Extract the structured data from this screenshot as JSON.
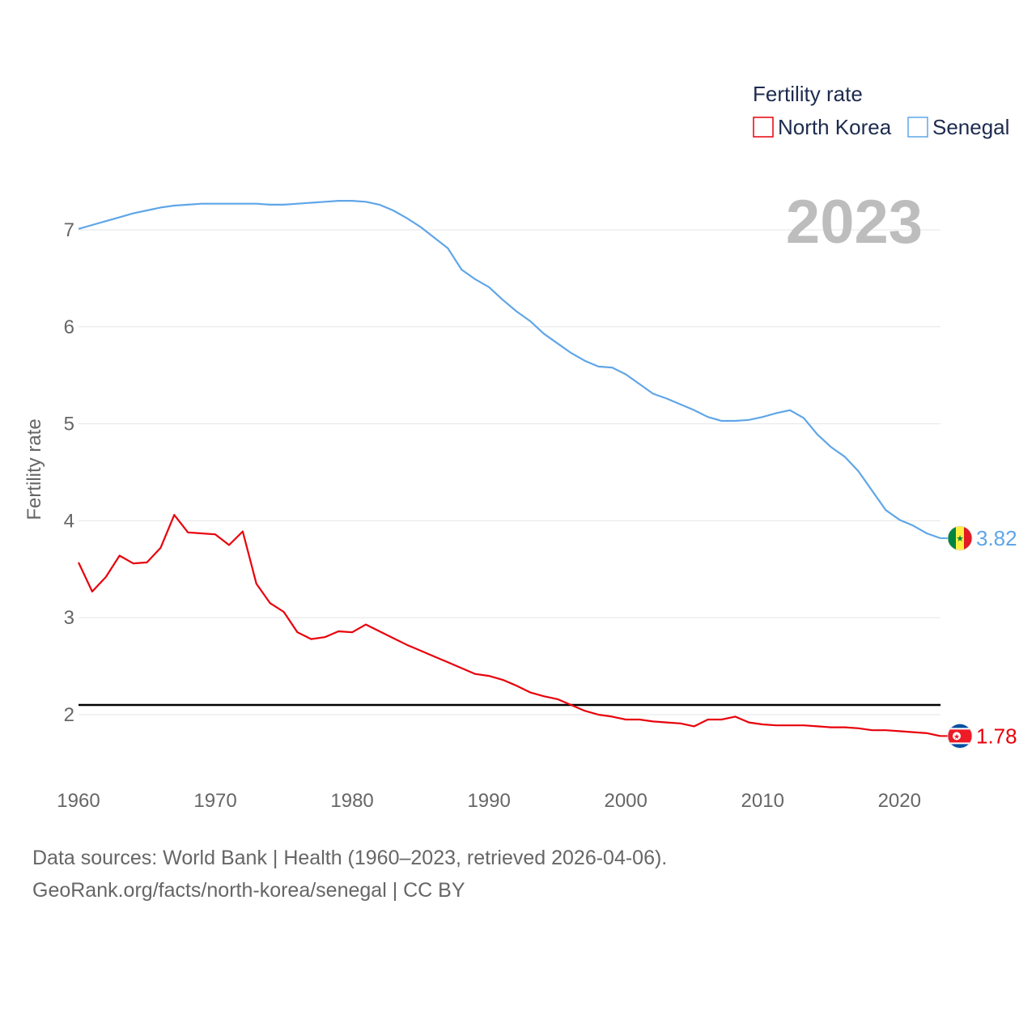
{
  "chart_data": {
    "type": "line",
    "title": "Fertility rate",
    "ylabel": "Fertility rate",
    "xlabel": "",
    "current_year": "2023",
    "xlim": [
      1960,
      2023
    ],
    "ylim": [
      1.5,
      7.6
    ],
    "x_ticks": [
      1960,
      1970,
      1980,
      1990,
      2000,
      2010,
      2020
    ],
    "y_ticks": [
      2,
      3,
      4,
      5,
      6,
      7
    ],
    "reference_line": 2.1,
    "legend_title": "Fertility rate",
    "x": [
      1960,
      1961,
      1962,
      1963,
      1964,
      1965,
      1966,
      1967,
      1968,
      1969,
      1970,
      1971,
      1972,
      1973,
      1974,
      1975,
      1976,
      1977,
      1978,
      1979,
      1980,
      1981,
      1982,
      1983,
      1984,
      1985,
      1986,
      1987,
      1988,
      1989,
      1990,
      1991,
      1992,
      1993,
      1994,
      1995,
      1996,
      1997,
      1998,
      1999,
      2000,
      2001,
      2002,
      2003,
      2004,
      2005,
      2006,
      2007,
      2008,
      2009,
      2010,
      2011,
      2012,
      2013,
      2014,
      2015,
      2016,
      2017,
      2018,
      2019,
      2020,
      2021,
      2022,
      2023
    ],
    "series": [
      {
        "name": "North Korea",
        "color": "#e8000b",
        "flag": "north-korea",
        "end_label": "1.78",
        "values": [
          3.57,
          3.27,
          3.42,
          3.64,
          3.56,
          3.57,
          3.72,
          4.06,
          3.88,
          3.87,
          3.86,
          3.75,
          3.89,
          3.35,
          3.15,
          3.06,
          2.85,
          2.78,
          2.8,
          2.86,
          2.85,
          2.93,
          2.86,
          2.79,
          2.72,
          2.66,
          2.6,
          2.54,
          2.48,
          2.42,
          2.4,
          2.36,
          2.3,
          2.23,
          2.19,
          2.16,
          2.1,
          2.04,
          2.0,
          1.98,
          1.95,
          1.95,
          1.93,
          1.92,
          1.91,
          1.88,
          1.95,
          1.95,
          1.98,
          1.92,
          1.9,
          1.89,
          1.89,
          1.89,
          1.88,
          1.87,
          1.87,
          1.86,
          1.84,
          1.84,
          1.83,
          1.82,
          1.81,
          1.78
        ]
      },
      {
        "name": "Senegal",
        "color": "#5fa6e8",
        "flag": "senegal",
        "end_label": "3.82",
        "values": [
          7.01,
          7.05,
          7.09,
          7.13,
          7.17,
          7.2,
          7.23,
          7.25,
          7.26,
          7.27,
          7.27,
          7.27,
          7.27,
          7.27,
          7.26,
          7.26,
          7.27,
          7.28,
          7.29,
          7.3,
          7.3,
          7.29,
          7.26,
          7.2,
          7.12,
          7.03,
          6.92,
          6.81,
          6.59,
          6.49,
          6.41,
          6.28,
          6.16,
          6.06,
          5.93,
          5.83,
          5.73,
          5.65,
          5.59,
          5.58,
          5.51,
          5.41,
          5.31,
          5.26,
          5.2,
          5.14,
          5.07,
          5.03,
          5.03,
          5.04,
          5.07,
          5.11,
          5.14,
          5.06,
          4.89,
          4.76,
          4.66,
          4.51,
          4.31,
          4.11,
          4.01,
          3.95,
          3.87,
          3.82
        ]
      }
    ]
  },
  "source": {
    "line1": "Data sources: World Bank | Health (1960–2023, retrieved 2026-04-06).",
    "line2": "GeoRank.org/facts/north-korea/senegal | CC BY"
  }
}
